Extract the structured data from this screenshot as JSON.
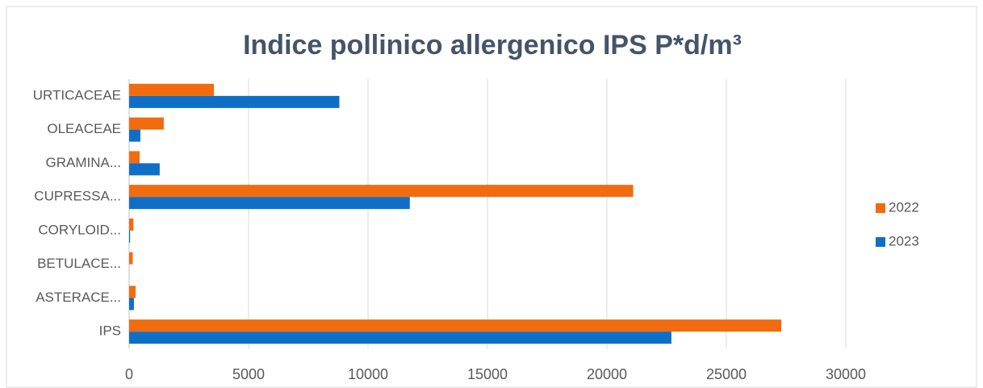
{
  "chart_data": {
    "type": "bar",
    "orientation": "horizontal",
    "title": "Indice pollinico allergenico IPS P*d/m³",
    "categories": [
      "URTICACEAE",
      "OLEACEAE",
      "GRAMINA...",
      "CUPRESSA...",
      "CORYLOID...",
      "BETULACE...",
      "ASTERACE...",
      "IPS"
    ],
    "series": [
      {
        "name": "2022",
        "color": "#f26b0f",
        "values": [
          3550,
          1450,
          440,
          21100,
          180,
          150,
          270,
          27300
        ]
      },
      {
        "name": "2023",
        "color": "#0f6fc6",
        "values": [
          8800,
          470,
          1280,
          11750,
          40,
          0,
          200,
          22700
        ]
      }
    ],
    "xlim": [
      0,
      30000
    ],
    "xticks": [
      0,
      5000,
      10000,
      15000,
      20000,
      25000,
      30000
    ],
    "grid": true,
    "legend": "right"
  }
}
